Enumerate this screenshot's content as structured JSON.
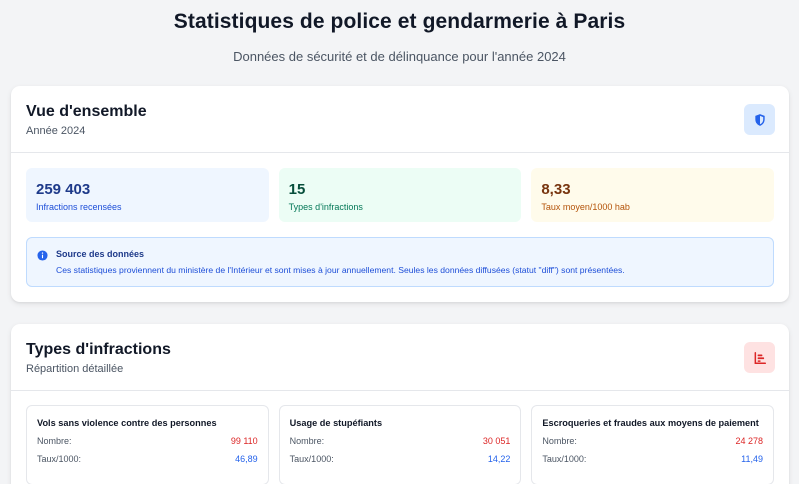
{
  "header": {
    "title": "Statistiques de police et gendarmerie à Paris",
    "subtitle": "Données de sécurité et de délinquance pour l'année 2024"
  },
  "overview": {
    "title": "Vue d'ensemble",
    "subtitle": "Année 2024",
    "icon": "shield-icon",
    "stats": [
      {
        "value": "259 403",
        "label": "Infractions recensées",
        "color": "#eff6ff"
      },
      {
        "value": "15",
        "label": "Types d'infractions",
        "color": "#ecfdf5"
      },
      {
        "value": "8,33",
        "label": "Taux moyen/1000 hab",
        "color": "#fffbeb"
      }
    ],
    "notice": {
      "title": "Source des données",
      "text": "Ces statistiques proviennent du ministère de l'Intérieur et sont mises à jour annuellement. Seules les données diffusées (statut \"diff\") sont présentées.",
      "icon": "info-icon"
    }
  },
  "types": {
    "title": "Types d'infractions",
    "subtitle": "Répartition détaillée",
    "icon": "bar-chart-icon",
    "nombre_label": "Nombre:",
    "taux_label": "Taux/1000:",
    "items": [
      {
        "name": "Vols sans violence contre des personnes",
        "nombre": "99 110",
        "taux": "46,89"
      },
      {
        "name": "Usage de stupéfiants",
        "nombre": "30 051",
        "taux": "14,22"
      },
      {
        "name": "Escroqueries et fraudes aux moyens de paiement",
        "nombre": "24 278",
        "taux": "11,49"
      }
    ]
  },
  "colors": {
    "accent_blue": "#2563eb",
    "accent_red": "#dc2626",
    "background": "#f3f4f6"
  }
}
